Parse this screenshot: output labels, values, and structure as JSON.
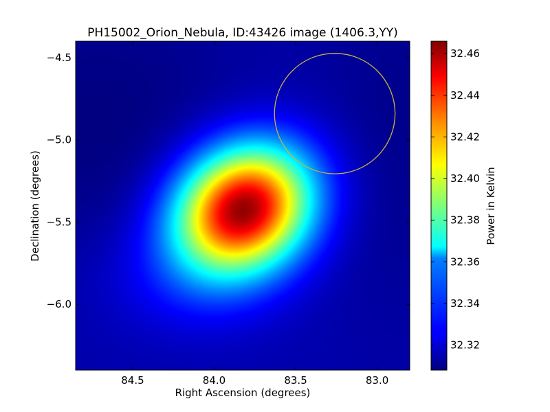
{
  "chart_data": {
    "type": "heatmap",
    "title": "PH15002_Orion_Nebula, ID:43426 image (1406.3,YY)",
    "xlabel": "Right Ascension (degrees)",
    "ylabel": "Declination (degrees)",
    "xlim": [
      84.85,
      82.8
    ],
    "ylim": [
      -6.4,
      -4.4
    ],
    "x_ticks": [
      {
        "value": 84.5,
        "label": "84.5"
      },
      {
        "value": 84.0,
        "label": "84.0"
      },
      {
        "value": 83.5,
        "label": "83.5"
      },
      {
        "value": 83.0,
        "label": "83.0"
      }
    ],
    "y_ticks": [
      {
        "value": -4.5,
        "label": "−4.5"
      },
      {
        "value": -5.0,
        "label": "−5.0"
      },
      {
        "value": -5.5,
        "label": "−5.5"
      },
      {
        "value": -6.0,
        "label": "−6.0"
      }
    ],
    "colorbar": {
      "label": "Power in Kelvin",
      "range": [
        32.308,
        32.466
      ],
      "colormap": "jet",
      "ticks": [
        {
          "value": 32.32,
          "label": "32.32"
        },
        {
          "value": 32.34,
          "label": "32.34"
        },
        {
          "value": 32.36,
          "label": "32.36"
        },
        {
          "value": 32.38,
          "label": "32.38"
        },
        {
          "value": 32.4,
          "label": "32.40"
        },
        {
          "value": 32.42,
          "label": "32.42"
        },
        {
          "value": 32.44,
          "label": "32.44"
        },
        {
          "value": 32.46,
          "label": "32.46"
        }
      ]
    },
    "peak": {
      "ra": 83.82,
      "dec": -5.42,
      "value": 32.466
    },
    "background_value": 32.315,
    "circle": {
      "ra": 83.26,
      "dec": -4.84,
      "radius_deg": 0.37,
      "color": "#c8b43c"
    }
  }
}
